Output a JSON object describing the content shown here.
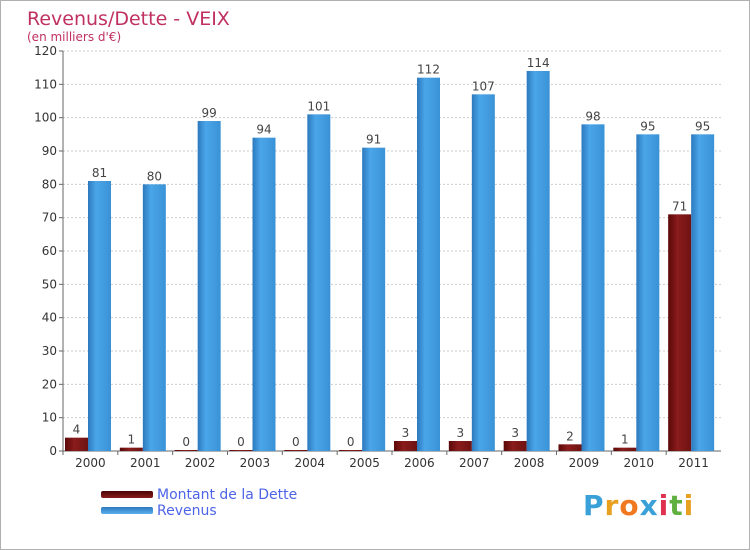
{
  "chart_data": {
    "type": "bar",
    "title": "Revenus/Dette - VEIX",
    "subtitle": "(en milliers d'€)",
    "xlabel": "",
    "ylabel": "",
    "ylim": [
      0,
      120
    ],
    "yticks": [
      0,
      10,
      20,
      30,
      40,
      50,
      60,
      70,
      80,
      90,
      100,
      110,
      120
    ],
    "grid": true,
    "categories": [
      "2000",
      "2001",
      "2002",
      "2003",
      "2004",
      "2005",
      "2006",
      "2007",
      "2008",
      "2009",
      "2010",
      "2011"
    ],
    "series": [
      {
        "name": "Montant de la Dette",
        "color": "#7a1010",
        "values": [
          4,
          1,
          0,
          0,
          0,
          0,
          3,
          3,
          3,
          2,
          1,
          71
        ]
      },
      {
        "name": "Revenus",
        "color": "#3f9de0",
        "values": [
          81,
          80,
          99,
          94,
          101,
          91,
          112,
          107,
          114,
          98,
          95,
          95
        ]
      }
    ]
  },
  "logo": {
    "letters": [
      "P",
      "r",
      "o",
      "x",
      "i",
      "t",
      "i"
    ],
    "colors": [
      "#3aa0d8",
      "#e8a020",
      "#f07820",
      "#3aa0d8",
      "#e03050",
      "#60b040",
      "#e8a020"
    ]
  },
  "colors": {
    "title": "#c03060",
    "axis_text": "#333333",
    "label_text": "#444444",
    "legend_text": "#4d64e8"
  }
}
